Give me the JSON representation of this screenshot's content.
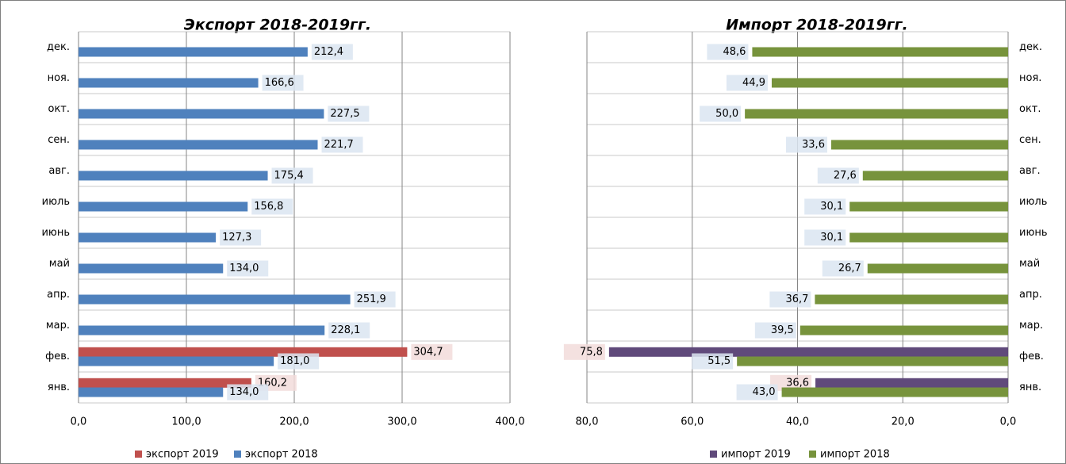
{
  "chart_data": [
    {
      "type": "bar",
      "orientation": "horizontal",
      "title": "Экспорт 2018-2019гг.",
      "categories": [
        "янв.",
        "фев.",
        "мар.",
        "апр.",
        "май",
        "июнь",
        "июль",
        "авг.",
        "сен.",
        "окт.",
        "ноя.",
        "дек."
      ],
      "series": [
        {
          "name": "экспорт 2019",
          "color": "#c0504d",
          "values": [
            160.2,
            304.7,
            null,
            null,
            null,
            null,
            null,
            null,
            null,
            null,
            null,
            null
          ],
          "value_labels": [
            "160,2",
            "304,7",
            null,
            null,
            null,
            null,
            null,
            null,
            null,
            null,
            null,
            null
          ]
        },
        {
          "name": "экспорт 2018",
          "color": "#4f81bd",
          "values": [
            134.0,
            181.0,
            228.1,
            251.9,
            134.0,
            127.3,
            156.8,
            175.4,
            221.7,
            227.5,
            166.6,
            212.4
          ],
          "value_labels": [
            "134,0",
            "181,0",
            "228,1",
            "251,9",
            "134,0",
            "127,3",
            "156,8",
            "175,4",
            "221,7",
            "227,5",
            "166,6",
            "212,4"
          ]
        }
      ],
      "xlim": [
        0,
        400
      ],
      "xticks": [
        {
          "value": 0,
          "label": "0,0"
        },
        {
          "value": 100,
          "label": "100,0"
        },
        {
          "value": 200,
          "label": "200,0"
        },
        {
          "value": 300,
          "label": "300,0"
        },
        {
          "value": 400,
          "label": "400,0"
        }
      ],
      "grid": true,
      "legend": "bottom"
    },
    {
      "type": "bar",
      "orientation": "horizontal",
      "title": "Импорт 2018-2019гг.",
      "categories": [
        "янв.",
        "фев.",
        "мар.",
        "апр.",
        "май",
        "июнь",
        "июль",
        "авг.",
        "сен.",
        "окт.",
        "ноя.",
        "дек."
      ],
      "series": [
        {
          "name": "импорт 2019",
          "color": "#604a7b",
          "values": [
            36.6,
            75.8,
            null,
            null,
            null,
            null,
            null,
            null,
            null,
            null,
            null,
            null
          ],
          "value_labels": [
            "36,6",
            "75,8",
            null,
            null,
            null,
            null,
            null,
            null,
            null,
            null,
            null,
            null
          ]
        },
        {
          "name": "импорт 2018",
          "color": "#77933c",
          "values": [
            43.0,
            51.5,
            39.5,
            36.7,
            26.7,
            30.1,
            30.1,
            27.6,
            33.6,
            50.0,
            44.9,
            48.6
          ],
          "value_labels": [
            "43,0",
            "51,5",
            "39,5",
            "36,7",
            "26,7",
            "30,1",
            "30,1",
            "27,6",
            "33,6",
            "50,0",
            "44,9",
            "48,6"
          ]
        }
      ],
      "xlim": [
        80,
        0
      ],
      "xticks": [
        {
          "value": 80,
          "label": "80,0"
        },
        {
          "value": 60,
          "label": "60,0"
        },
        {
          "value": 40,
          "label": "40,0"
        },
        {
          "value": 20,
          "label": "20,0"
        },
        {
          "value": 0,
          "label": "0,0"
        }
      ],
      "grid": true,
      "legend": "bottom"
    }
  ]
}
